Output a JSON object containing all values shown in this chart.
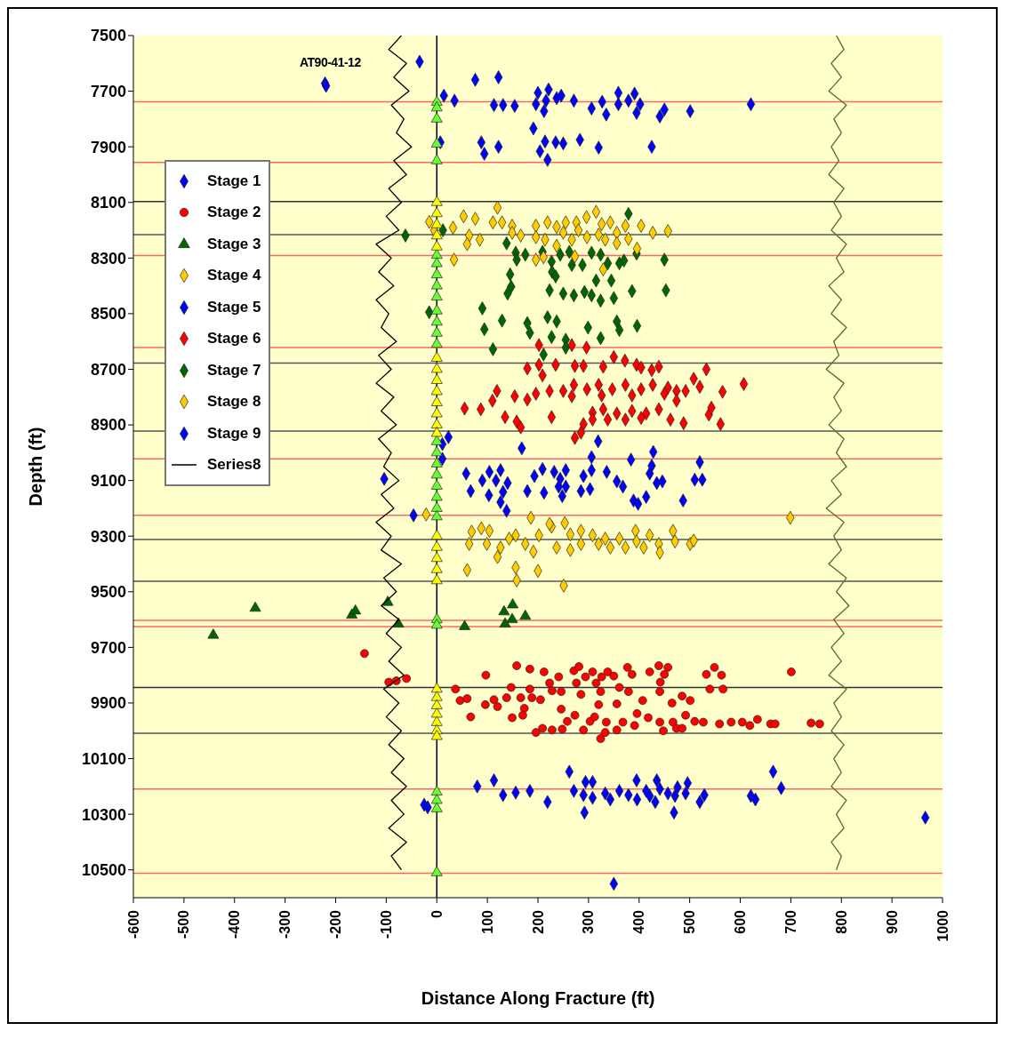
{
  "chart_data": {
    "type": "scatter",
    "xlabel": "Distance Along Fracture (ft)",
    "ylabel": "Depth (ft)",
    "annotations": [
      "AT90-41-12"
    ],
    "xlim": [
      -600,
      1000
    ],
    "xticks": [
      -600,
      -500,
      -400,
      -300,
      -200,
      -100,
      0,
      100,
      200,
      300,
      400,
      500,
      600,
      700,
      800,
      900,
      1000
    ],
    "ylim": [
      10600,
      7500
    ],
    "yticks": [
      7500,
      7700,
      7900,
      8100,
      8300,
      8500,
      8700,
      8900,
      9100,
      9300,
      9500,
      9700,
      9900,
      10100,
      10300,
      10500
    ],
    "legend": "top left",
    "ref_lines": [
      {
        "axis": "x",
        "value": 0,
        "color": "#000000"
      },
      {
        "axis": "y",
        "value": 7738,
        "color": "#ff6666"
      },
      {
        "axis": "y",
        "value": 7956,
        "color": "#ff6666"
      },
      {
        "axis": "y",
        "value": 8291,
        "color": "#ff6666"
      },
      {
        "axis": "y",
        "value": 8622,
        "color": "#ff6666"
      },
      {
        "axis": "y",
        "value": 9022,
        "color": "#ff6666"
      },
      {
        "axis": "y",
        "value": 9225,
        "color": "#ff6666"
      },
      {
        "axis": "y",
        "value": 9603,
        "color": "#ff6666"
      },
      {
        "axis": "y",
        "value": 9625,
        "color": "#ff6666"
      },
      {
        "axis": "y",
        "value": 10209,
        "color": "#ff6666"
      },
      {
        "axis": "y",
        "value": 10512,
        "color": "#ff6666"
      },
      {
        "axis": "y",
        "value": 8097,
        "color": "#333333"
      },
      {
        "axis": "y",
        "value": 8216,
        "color": "#555555"
      },
      {
        "axis": "y",
        "value": 8678,
        "color": "#555555"
      },
      {
        "axis": "y",
        "value": 8922,
        "color": "#555555"
      },
      {
        "axis": "y",
        "value": 9312,
        "color": "#555555"
      },
      {
        "axis": "y",
        "value": 9462,
        "color": "#555555"
      },
      {
        "axis": "y",
        "value": 9844,
        "color": "#333333"
      },
      {
        "axis": "y",
        "value": 10009,
        "color": "#555555"
      }
    ],
    "series": [
      {
        "name": "Stage 1",
        "marker": "diamond",
        "color": "#0000ff",
        "x": [
          262,
          665,
          113,
          80,
          131,
          156,
          184,
          219,
          271,
          294,
          308,
          290,
          308,
          292,
          333,
          343,
          361,
          379,
          395,
          396,
          414,
          421,
          435,
          441,
          432,
          457,
          471,
          469,
          476,
          492,
          496,
          520,
          529,
          621,
          630,
          681,
          966,
          350,
          -25,
          -18
        ],
        "values": [
          10147,
          10147,
          10178,
          10200,
          10231,
          10222,
          10216,
          10256,
          10216,
          10184,
          10184,
          10231,
          10241,
          10294,
          10225,
          10247,
          10216,
          10231,
          10178,
          10247,
          10216,
          10234,
          10178,
          10209,
          10256,
          10225,
          10234,
          10294,
          10203,
          10225,
          10188,
          10256,
          10231,
          10234,
          10247,
          10206,
          10312,
          10550,
          10266,
          10275
        ]
      },
      {
        "name": "Stage 2",
        "marker": "circle",
        "color": "#ff0000",
        "x": [
          -143,
          -95,
          -80,
          -60,
          37,
          46,
          60,
          67,
          97,
          96,
          113,
          120,
          138,
          147,
          149,
          158,
          166,
          173,
          170,
          184,
          184,
          188,
          205,
          212,
          223,
          228,
          241,
          246,
          246,
          271,
          276,
          281,
          285,
          294,
          308,
          315,
          324,
          326,
          320,
          338,
          350,
          356,
          361,
          377,
          386,
          379,
          407,
          421,
          439,
          457,
          450,
          442,
          441,
          465,
          485,
          501,
          533,
          549,
          563,
          540,
          566,
          701,
          196,
          209,
          228,
          248,
          258,
          273,
          290,
          303,
          312,
          324,
          333,
          335,
          356,
          368,
          391,
          396,
          418,
          441,
          448,
          467,
          474,
          492,
          485,
          510,
          527,
          559,
          582,
          604,
          619,
          634,
          660,
          669,
          740,
          757
        ],
        "values": [
          9722,
          9825,
          9820,
          9812,
          9850,
          9891,
          9884,
          9950,
          9800,
          9906,
          9888,
          9913,
          9881,
          9844,
          9953,
          9766,
          9881,
          9919,
          9944,
          9778,
          9850,
          9881,
          9888,
          9788,
          9828,
          9856,
          9806,
          9859,
          9922,
          9784,
          9828,
          9769,
          9869,
          9806,
          9788,
          9828,
          9859,
          9806,
          9906,
          9788,
          9803,
          9903,
          9844,
          9772,
          9797,
          9859,
          9891,
          9788,
          9766,
          9772,
          9797,
          9825,
          9859,
          9900,
          9875,
          9891,
          9797,
          9772,
          9800,
          9850,
          9850,
          9788,
          10006,
          9991,
          9997,
          9994,
          9966,
          9944,
          9997,
          9966,
          9950,
          10028,
          10006,
          9969,
          9997,
          9969,
          9981,
          9938,
          9953,
          9969,
          10000,
          9969,
          9991,
          9944,
          9991,
          9966,
          9969,
          9975,
          9969,
          9969,
          9981,
          9959,
          9975,
          9975,
          9972,
          9975
        ]
      },
      {
        "name": "Stage 3",
        "marker": "triangle",
        "color": "#006600",
        "x": [
          -442,
          -359,
          -168,
          -161,
          -97,
          -76,
          55,
          133,
          150,
          149,
          135,
          175
        ],
        "values": [
          9656,
          9559,
          9584,
          9569,
          9538,
          9616,
          9625,
          9572,
          9547,
          9600,
          9616,
          9588
        ]
      },
      {
        "name": "Stage 4",
        "marker": "diamond",
        "color": "#ffcc00",
        "x": [
          186,
          699,
          69,
          88,
          104,
          64,
          99,
          120,
          126,
          143,
          156,
          175,
          191,
          202,
          227,
          253,
          237,
          264,
          264,
          285,
          285,
          308,
          320,
          343,
          361,
          373,
          393,
          395,
          409,
          421,
          439,
          441,
          467,
          471,
          501,
          508,
          60,
          156,
          200,
          158,
          251,
          223,
          333,
          -21
        ],
        "values": [
          9234,
          9234,
          9284,
          9272,
          9281,
          9328,
          9328,
          9375,
          9341,
          9309,
          9297,
          9328,
          9356,
          9297,
          9266,
          9253,
          9341,
          9350,
          9294,
          9281,
          9328,
          9297,
          9328,
          9341,
          9309,
          9341,
          9281,
          9319,
          9341,
          9297,
          9328,
          9359,
          9281,
          9319,
          9328,
          9316,
          9422,
          9413,
          9425,
          9459,
          9478,
          9256,
          9309,
          9222
        ]
      },
      {
        "name": "Stage 5",
        "marker": "diamond",
        "color": "#0000ff",
        "x": [
          23,
          11,
          319,
          168,
          428,
          11,
          306,
          384,
          520,
          58,
          90,
          104,
          117,
          126,
          140,
          67,
          103,
          131,
          126,
          138,
          193,
          209,
          232,
          255,
          244,
          179,
          212,
          241,
          255,
          248,
          285,
          290,
          306,
          303,
          336,
          356,
          368,
          421,
          425,
          435,
          446,
          414,
          389,
          398,
          487,
          510,
          525,
          -104,
          -46
        ],
        "values": [
          8944,
          8969,
          8959,
          8984,
          8997,
          9022,
          9016,
          9025,
          9034,
          9075,
          9100,
          9069,
          9100,
          9063,
          9109,
          9138,
          9153,
          9141,
          9178,
          9209,
          9084,
          9059,
          9069,
          9063,
          9094,
          9138,
          9144,
          9122,
          9122,
          9156,
          9138,
          9084,
          9063,
          9131,
          9069,
          9103,
          9122,
          9075,
          9047,
          9109,
          9103,
          9159,
          9172,
          9184,
          9172,
          9097,
          9097,
          9094,
          9225
        ]
      },
      {
        "name": "Stage 6",
        "marker": "diamond",
        "color": "#ff0000",
        "x": [
          202,
          267,
          296,
          179,
          202,
          209,
          235,
          273,
          290,
          329,
          350,
          372,
          395,
          404,
          425,
          439,
          533,
          607,
          508,
          520,
          565,
          119,
          110,
          55,
          87,
          135,
          158,
          166,
          154,
          179,
          196,
          227,
          223,
          250,
          271,
          297,
          320,
          347,
          373,
          404,
          427,
          457,
          474,
          492,
          267,
          326,
          386,
          450,
          308,
          329,
          356,
          386,
          414,
          439,
          474,
          462,
          308,
          338,
          373,
          404,
          290,
          285,
          488,
          538,
          543,
          561,
          273
        ],
        "values": [
          8613,
          8613,
          8622,
          8697,
          8684,
          8722,
          8684,
          8688,
          8688,
          8691,
          8656,
          8669,
          8684,
          8694,
          8703,
          8691,
          8700,
          8753,
          8734,
          8763,
          8781,
          8778,
          8813,
          8841,
          8844,
          8872,
          8888,
          8909,
          8797,
          8809,
          8788,
          8872,
          8778,
          8778,
          8756,
          8772,
          8756,
          8772,
          8756,
          8772,
          8756,
          8766,
          8778,
          8778,
          8797,
          8794,
          8794,
          8788,
          8856,
          8844,
          8859,
          8850,
          8859,
          8844,
          8813,
          8881,
          8881,
          8881,
          8881,
          8875,
          8897,
          8928,
          8894,
          8863,
          8838,
          8897,
          8947
        ]
      },
      {
        "name": "Stage 7",
        "marker": "diamond",
        "color": "#006600",
        "x": [
          379,
          12,
          138,
          156,
          158,
          175,
          209,
          227,
          228,
          235,
          244,
          262,
          267,
          288,
          306,
          315,
          324,
          338,
          361,
          370,
          395,
          450,
          145,
          147,
          140,
          223,
          250,
          271,
          292,
          306,
          324,
          350,
          386,
          453,
          345,
          90,
          94,
          129,
          179,
          184,
          219,
          237,
          227,
          255,
          299,
          324,
          356,
          361,
          396,
          111,
          211,
          255,
          -15,
          -62
        ],
        "values": [
          8141,
          8200,
          8247,
          8281,
          8306,
          8288,
          8278,
          8313,
          8350,
          8366,
          8288,
          8278,
          8325,
          8325,
          8281,
          8381,
          8288,
          8319,
          8319,
          8309,
          8284,
          8306,
          8359,
          8403,
          8428,
          8416,
          8428,
          8434,
          8422,
          8434,
          8453,
          8444,
          8419,
          8416,
          8381,
          8481,
          8556,
          8525,
          8534,
          8569,
          8513,
          8528,
          8584,
          8594,
          8550,
          8588,
          8528,
          8559,
          8544,
          8628,
          8647,
          8622,
          8495,
          8219
        ]
      },
      {
        "name": "Stage 8",
        "marker": "diamond",
        "color": "#ffcc00",
        "x": [
          120,
          53,
          76,
          32,
          64,
          85,
          60,
          111,
          129,
          149,
          166,
          196,
          219,
          237,
          255,
          276,
          296,
          315,
          326,
          343,
          356,
          373,
          404,
          427,
          457,
          196,
          214,
          237,
          267,
          297,
          320,
          333,
          356,
          379,
          396,
          34,
          196,
          211,
          273,
          329,
          280,
          250,
          149,
          -15,
          -5
        ],
        "values": [
          8119,
          8150,
          8159,
          8191,
          8219,
          8234,
          8250,
          8172,
          8172,
          8184,
          8219,
          8184,
          8172,
          8188,
          8172,
          8172,
          8153,
          8134,
          8178,
          8172,
          8209,
          8184,
          8184,
          8209,
          8203,
          8225,
          8234,
          8256,
          8234,
          8225,
          8216,
          8234,
          8247,
          8231,
          8266,
          8306,
          8306,
          8297,
          8294,
          8341,
          8200,
          8209,
          8209,
          8170,
          8200
        ]
      },
      {
        "name": "Stage 9",
        "marker": "diamond",
        "color": "#0000ff",
        "x": [
          -221,
          -219,
          -34,
          14,
          35,
          76,
          122,
          113,
          131,
          154,
          191,
          200,
          221,
          216,
          196,
          212,
          237,
          246,
          271,
          306,
          327,
          335,
          359,
          359,
          379,
          391,
          395,
          402,
          450,
          441,
          501,
          621,
          7,
          88,
          94,
          122,
          214,
          235,
          250,
          204,
          219,
          283,
          320,
          425
        ],
        "values": [
          7672,
          7681,
          7594,
          7716,
          7734,
          7659,
          7650,
          7750,
          7750,
          7753,
          7834,
          7706,
          7694,
          7734,
          7747,
          7772,
          7725,
          7716,
          7734,
          7762,
          7738,
          7784,
          7706,
          7747,
          7734,
          7709,
          7778,
          7747,
          7766,
          7791,
          7772,
          7747,
          7884,
          7884,
          7925,
          7900,
          7881,
          7884,
          7888,
          7916,
          7947,
          7875,
          7903,
          7900
        ]
      },
      {
        "name": "Series8",
        "type": "line",
        "marker": "none",
        "color": "#000000",
        "x": [
          -70,
          -95,
          -60,
          -85,
          -55,
          -90,
          -65,
          -80,
          -50,
          -85,
          -60,
          -95,
          -70,
          -100,
          -75,
          -120,
          -90,
          -115,
          -85,
          -120,
          -95,
          -110,
          -80,
          -115,
          -90,
          -120,
          -85,
          -110,
          -80,
          -115,
          -90,
          -105,
          -75,
          -110,
          -85,
          -120,
          -90,
          -110,
          -70,
          -105,
          -80,
          -110,
          -75,
          -100,
          -70,
          -95,
          -65,
          -105,
          -75,
          -100,
          -70,
          -95,
          -65,
          -90,
          -60,
          -90,
          -65,
          -95,
          -60,
          -90,
          -70
        ],
        "values": [
          7500,
          7550,
          7600,
          7650,
          7700,
          7750,
          7800,
          7850,
          7900,
          7950,
          8000,
          8050,
          8100,
          8150,
          8200,
          8250,
          8300,
          8350,
          8400,
          8450,
          8500,
          8550,
          8600,
          8650,
          8700,
          8750,
          8800,
          8850,
          8900,
          8950,
          9000,
          9050,
          9100,
          9150,
          9200,
          9250,
          9300,
          9350,
          9400,
          9450,
          9500,
          9550,
          9600,
          9650,
          9700,
          9750,
          9800,
          9850,
          9900,
          9950,
          10000,
          10050,
          10100,
          10150,
          10200,
          10250,
          10300,
          10350,
          10400,
          10450,
          10500
        ]
      },
      {
        "type": "line",
        "marker": "none",
        "color": "#556b2f",
        "x": [
          790,
          805,
          780,
          800,
          775,
          810,
          785,
          800,
          780,
          795,
          775,
          805,
          785,
          800,
          780,
          810,
          790,
          805,
          775,
          800,
          780,
          810,
          785,
          795,
          770,
          805,
          785,
          800,
          775,
          805,
          790,
          810,
          780,
          800,
          770,
          805,
          785,
          800,
          775,
          810,
          790,
          815,
          785,
          805,
          780,
          800,
          775,
          810,
          785,
          800,
          780,
          805,
          785,
          800,
          780,
          810,
          790,
          805,
          780,
          800,
          790
        ],
        "values": [
          7500,
          7550,
          7600,
          7650,
          7700,
          7750,
          7800,
          7850,
          7900,
          7950,
          8000,
          8050,
          8100,
          8150,
          8200,
          8250,
          8300,
          8350,
          8400,
          8450,
          8500,
          8550,
          8600,
          8650,
          8700,
          8750,
          8800,
          8850,
          8900,
          8950,
          9000,
          9050,
          9100,
          9150,
          9200,
          9250,
          9300,
          9350,
          9400,
          9450,
          9500,
          9550,
          9600,
          9650,
          9700,
          9750,
          9800,
          9850,
          9900,
          9950,
          10000,
          10050,
          10100,
          10150,
          10200,
          10250,
          10300,
          10350,
          10400,
          10450,
          10500
        ]
      },
      {
        "marker": "triangle",
        "color": "#66ff33",
        "x": [
          0,
          0,
          0,
          0,
          0,
          0,
          0,
          0,
          0,
          0,
          0,
          0,
          0,
          0,
          0,
          0,
          0,
          0,
          0,
          0,
          0,
          0,
          0,
          0,
          0,
          0,
          0,
          0
        ],
        "values": [
          7740,
          7760,
          7800,
          7890,
          7950,
          8290,
          8320,
          8360,
          8400,
          8440,
          8490,
          8530,
          8570,
          8610,
          8960,
          9000,
          9040,
          9080,
          9120,
          9160,
          9200,
          9230,
          9600,
          9620,
          10220,
          10250,
          10280,
          10510
        ]
      },
      {
        "marker": "triangle",
        "color": "#ffff00",
        "x": [
          0,
          0,
          0,
          0,
          0,
          0,
          0,
          0,
          0,
          0,
          0,
          0,
          0,
          0,
          0,
          0,
          0,
          0,
          0,
          0,
          0,
          0,
          0,
          0,
          0
        ],
        "values": [
          8100,
          8140,
          8180,
          8220,
          8260,
          8660,
          8700,
          8740,
          8780,
          8820,
          8860,
          8900,
          8930,
          9300,
          9340,
          9380,
          9420,
          9460,
          9850,
          9880,
          9910,
          9940,
          9970,
          10000,
          10020
        ]
      }
    ]
  }
}
